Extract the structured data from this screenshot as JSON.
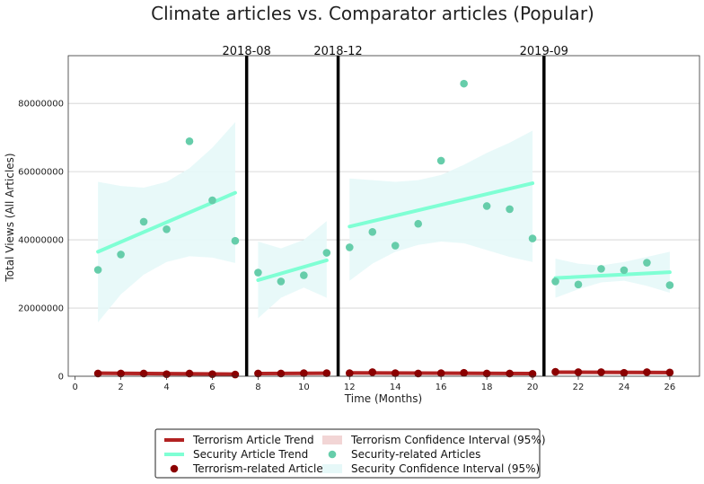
{
  "chart_data": {
    "type": "scatter",
    "title": "Climate articles vs. Comparator articles (Popular)",
    "xlabel": "Time (Months)",
    "ylabel": "Total Views (All Articles)",
    "xlim": [
      -0.3,
      27.3
    ],
    "ylim": [
      0,
      94000000
    ],
    "xticks": [
      0,
      2,
      4,
      6,
      8,
      10,
      12,
      14,
      16,
      18,
      20,
      22,
      24,
      26
    ],
    "yticks": [
      0,
      20000000,
      40000000,
      60000000,
      80000000
    ],
    "grid": "horizontal",
    "legend_position": "bottom",
    "colors": {
      "terrorism": "#b22222",
      "terrorism_ci": "#f2d5d5",
      "terrorism_points": "#8b0000",
      "security": "#7fffd4",
      "security_ci": "#e6f8f8",
      "security_points": "#66cdaa",
      "event_line": "#000000",
      "grid": "#d0d0d0"
    },
    "event_lines": [
      {
        "x": 7.5,
        "label": "2018-08"
      },
      {
        "x": 11.5,
        "label": "2018-12"
      },
      {
        "x": 20.5,
        "label": "2019-09"
      }
    ],
    "segments": [
      {
        "x": [
          1,
          2,
          3,
          4,
          5,
          6,
          7
        ],
        "security_points": [
          31200000,
          35700000,
          45300000,
          43100000,
          68900000,
          51600000,
          39700000
        ],
        "security_trend": [
          36500000,
          53800000
        ],
        "security_ci_lower": [
          15800000,
          24000000,
          29800000,
          33500000,
          35200000,
          34800000,
          33200000
        ],
        "security_ci_upper": [
          57000000,
          55800000,
          55300000,
          57000000,
          61000000,
          67000000,
          74500000
        ],
        "terrorism_points": [
          800000,
          800000,
          800000,
          600000,
          800000,
          600000,
          500000
        ],
        "terrorism_trend": [
          900000,
          600000
        ],
        "terrorism_ci_lower": [
          300000,
          100000
        ],
        "terrorism_ci_upper": [
          1500000,
          1200000
        ]
      },
      {
        "x": [
          8,
          9,
          10,
          11
        ],
        "security_points": [
          30400000,
          27800000,
          29600000,
          36200000
        ],
        "security_trend": [
          28200000,
          34000000
        ],
        "security_ci_lower": [
          17000000,
          23000000,
          26000000,
          23000000
        ],
        "security_ci_upper": [
          39500000,
          37500000,
          40000000,
          45500000
        ],
        "terrorism_points": [
          800000,
          800000,
          900000,
          900000
        ],
        "terrorism_trend": [
          800000,
          900000
        ],
        "terrorism_ci_lower": [
          300000,
          400000
        ],
        "terrorism_ci_upper": [
          1300000,
          1400000
        ]
      },
      {
        "x": [
          12,
          13,
          14,
          15,
          16,
          17,
          18,
          19,
          20
        ],
        "security_points": [
          37800000,
          42300000,
          38300000,
          44700000,
          63200000,
          85800000,
          49900000,
          49000000,
          40400000
        ],
        "security_trend": [
          43900000,
          56600000
        ],
        "security_ci_lower": [
          28000000,
          33000000,
          36500000,
          38500000,
          39500000,
          39000000,
          37000000,
          35000000,
          33500000
        ],
        "security_ci_upper": [
          58000000,
          57500000,
          57000000,
          57500000,
          59000000,
          62000000,
          65500000,
          68500000,
          72000000
        ],
        "terrorism_points": [
          900000,
          1200000,
          900000,
          800000,
          900000,
          1000000,
          800000,
          800000,
          700000
        ],
        "terrorism_trend": [
          1000000,
          800000
        ],
        "terrorism_ci_lower": [
          500000,
          300000
        ],
        "terrorism_ci_upper": [
          1500000,
          1300000
        ]
      },
      {
        "x": [
          21,
          22,
          23,
          24,
          25,
          26
        ],
        "security_points": [
          27800000,
          26900000,
          31500000,
          31100000,
          33300000,
          26700000
        ],
        "security_trend": [
          28800000,
          30500000
        ],
        "security_ci_lower": [
          23000000,
          25500000,
          27500000,
          28000000,
          26500000,
          24500000
        ],
        "security_ci_upper": [
          34500000,
          33000000,
          32500000,
          33500000,
          35000000,
          36500000
        ],
        "terrorism_points": [
          1300000,
          1200000,
          1200000,
          1000000,
          1200000,
          1100000
        ],
        "terrorism_trend": [
          1200000,
          1100000
        ],
        "terrorism_ci_lower": [
          700000,
          600000
        ],
        "terrorism_ci_upper": [
          1700000,
          1600000
        ]
      }
    ],
    "legend": [
      {
        "key": "terrorism_trend",
        "label": "Terrorism Article Trend"
      },
      {
        "key": "security_trend",
        "label": "Security Article Trend"
      },
      {
        "key": "terrorism_points",
        "label": "Terrorism-related Articles"
      },
      {
        "key": "terrorism_ci",
        "label": "Terrorism Confidence Interval (95%)"
      },
      {
        "key": "security_points",
        "label": "Security-related Articles"
      },
      {
        "key": "security_ci",
        "label": "Security Confidence Interval (95%)"
      }
    ]
  }
}
